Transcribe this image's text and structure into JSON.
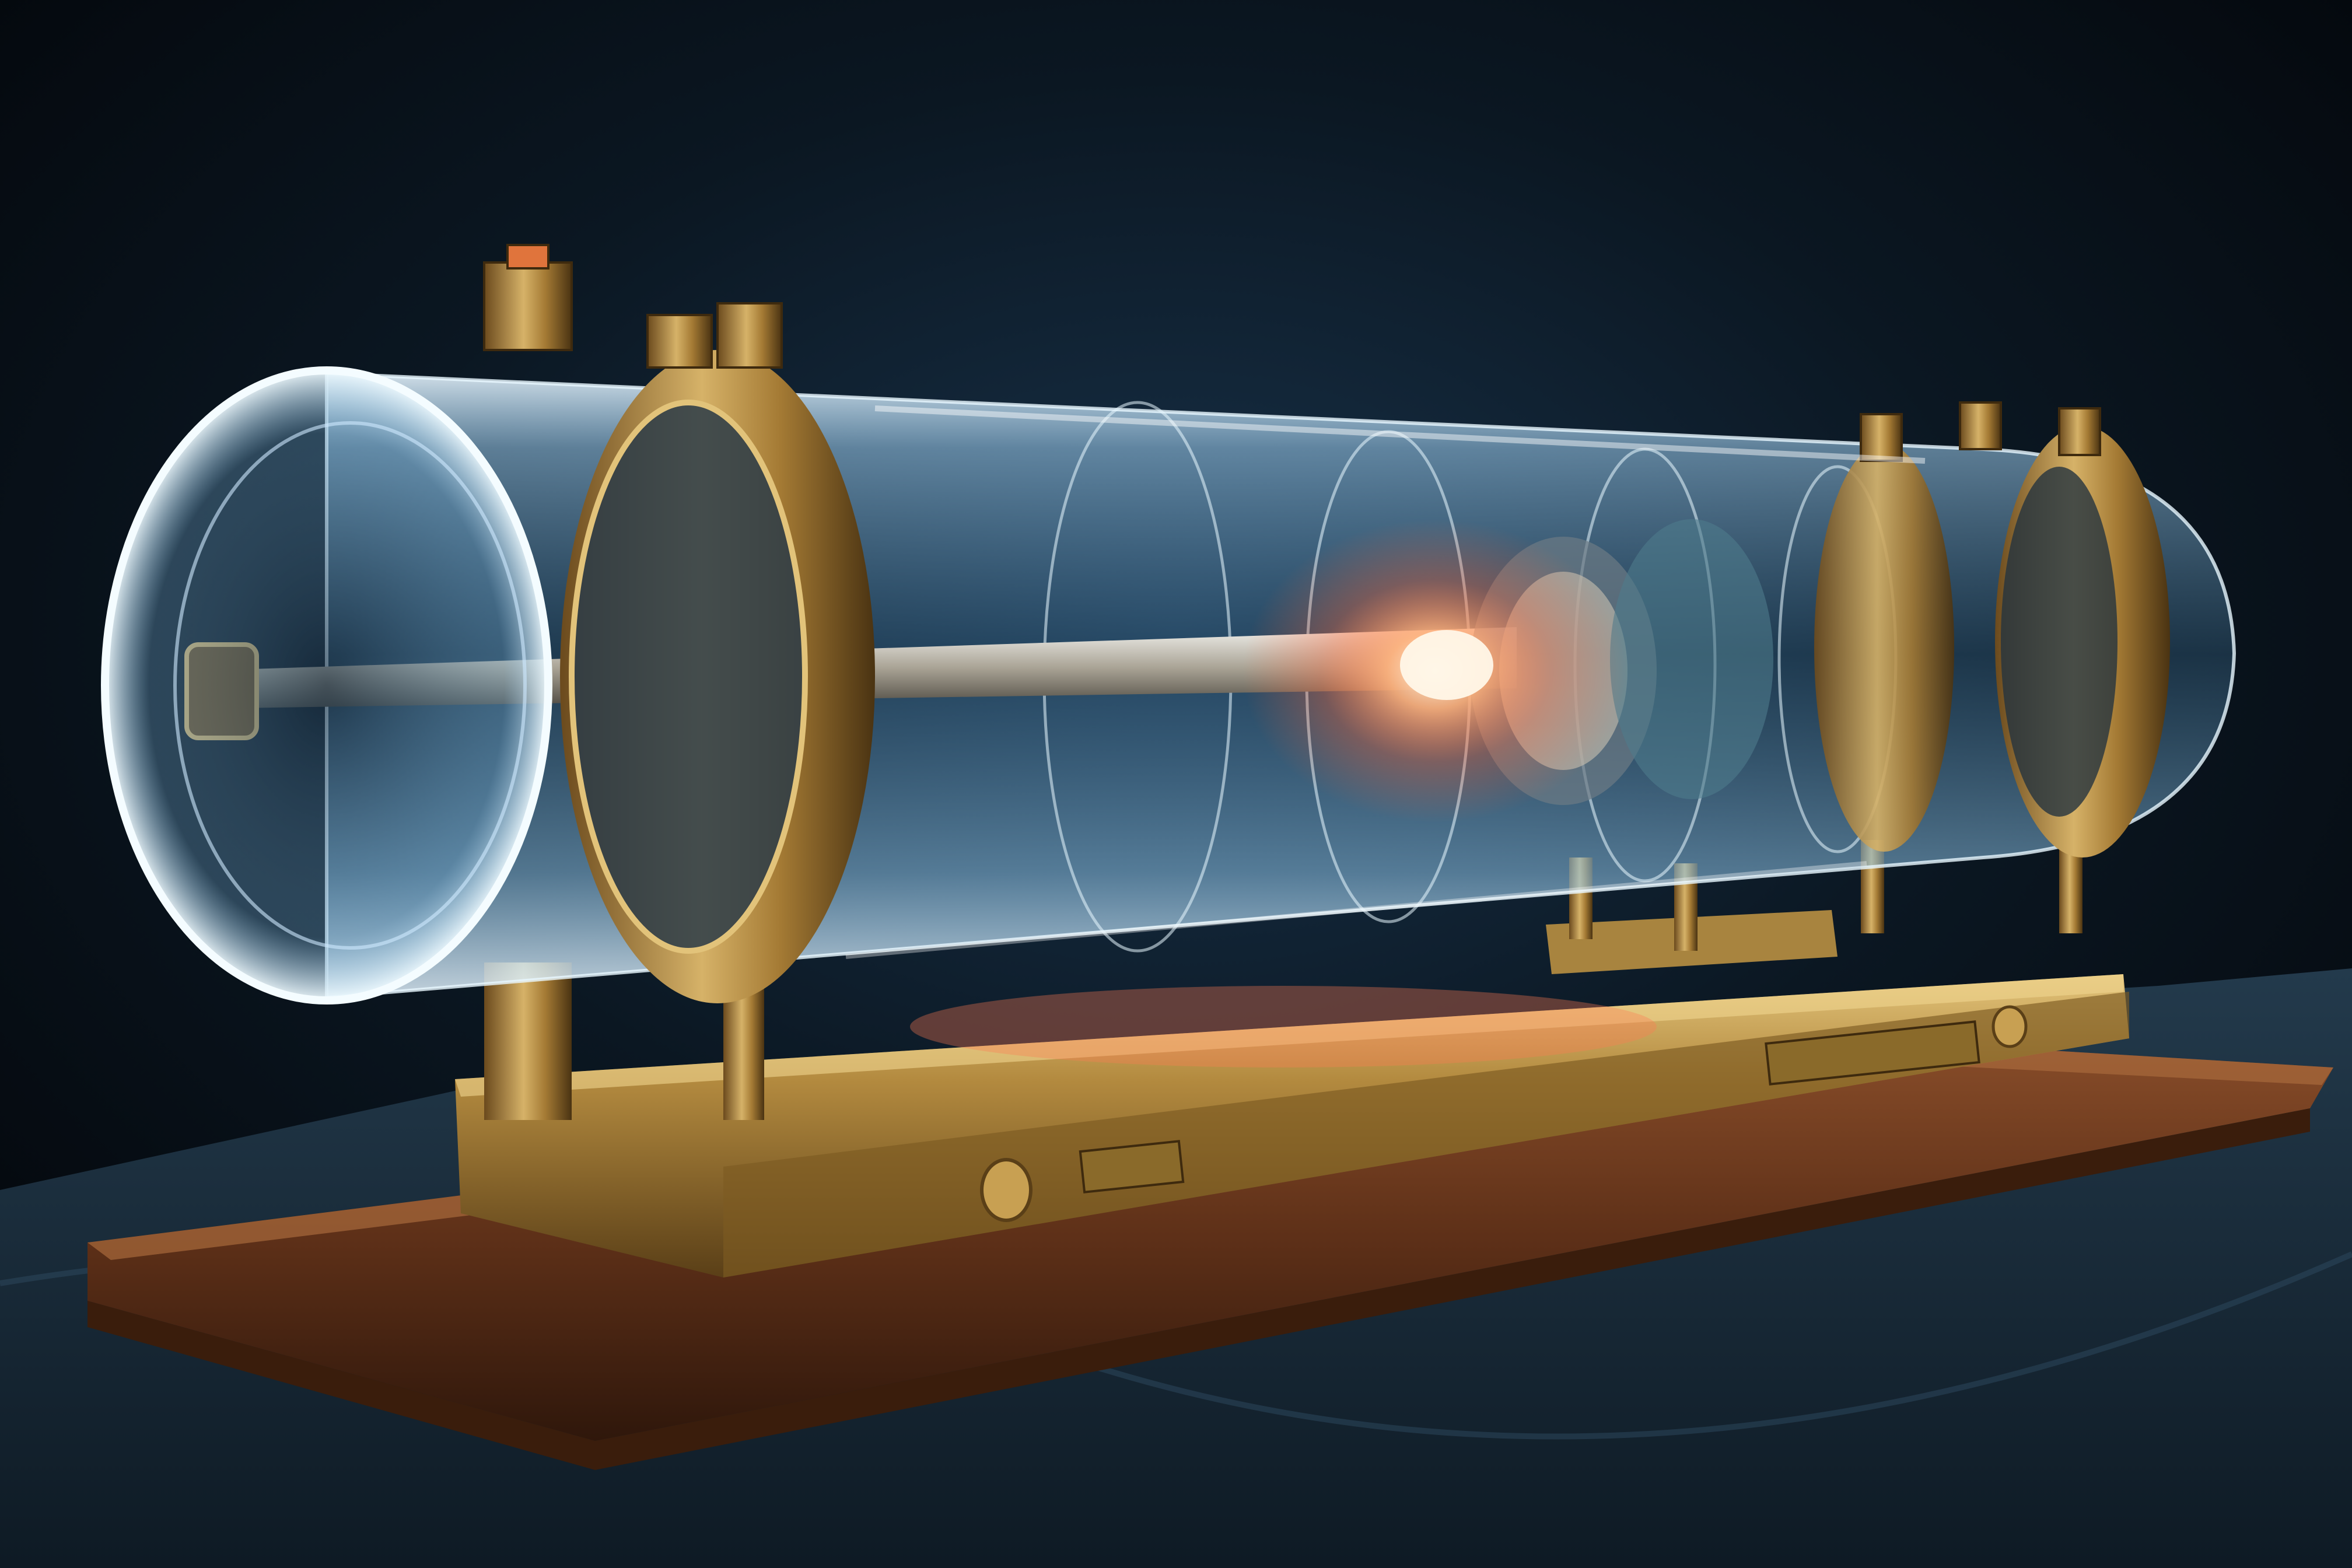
{
  "scene": {
    "subject": "brass-and-glass-cylindrical-apparatus",
    "engravings": {
      "base_front_left": "",
      "base_front_center": "",
      "base_front_right": ""
    },
    "colors": {
      "backdrop": "#05080c",
      "tablecloth": "#1c2f3f",
      "wood": "#6a3a1e",
      "brass": "#b08a3c",
      "glass": "#bfe6ff",
      "glow": "#ff8a5c"
    }
  }
}
